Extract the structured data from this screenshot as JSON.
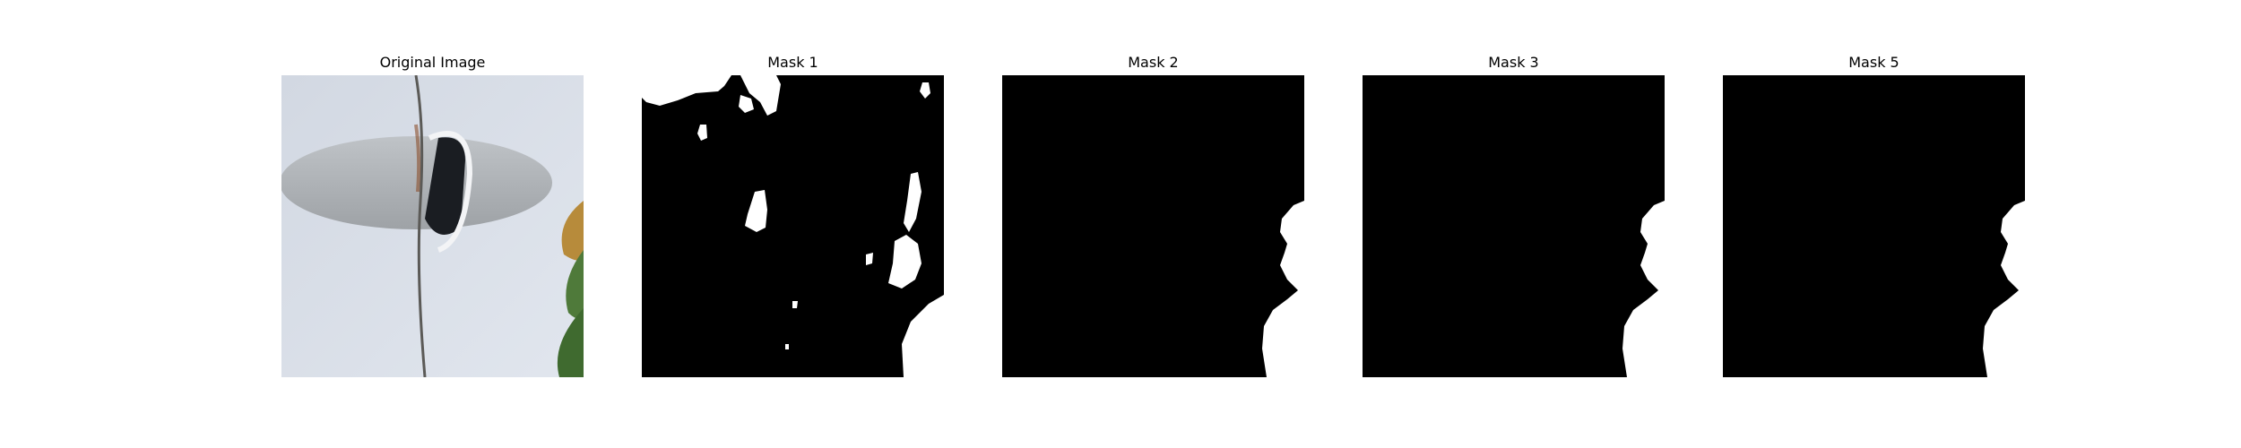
{
  "figure": {
    "panels": [
      {
        "title": "Original Image",
        "kind": "photo"
      },
      {
        "title": "Mask 1",
        "kind": "mask"
      },
      {
        "title": "Mask 2",
        "kind": "mask"
      },
      {
        "title": "Mask 3",
        "kind": "mask"
      },
      {
        "title": "Mask 5",
        "kind": "mask"
      }
    ]
  },
  "colors": {
    "mask_background": "#000000",
    "mask_foreground": "#ffffff",
    "photo_background": "#d6dbe3",
    "leaf_green": "#4f7a3a",
    "leaf_yellow": "#b78b3b"
  }
}
